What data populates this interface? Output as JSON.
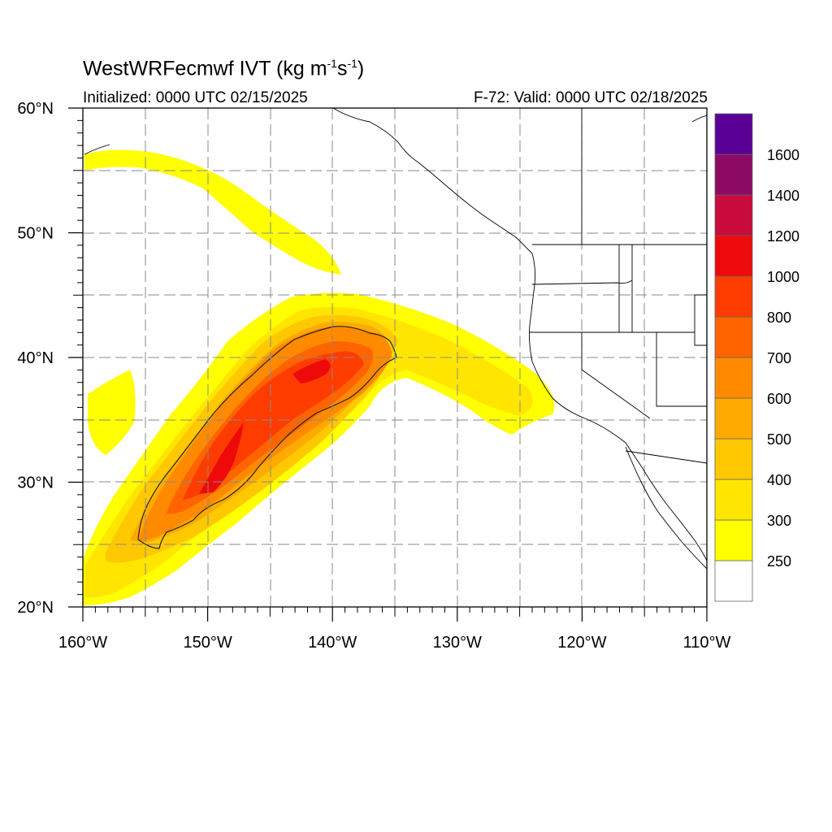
{
  "title": {
    "model": "WestWRFecmwf",
    "variable": "IVT",
    "units_prefix": "(kg m",
    "units_exp1": "-1",
    "units_mid": "s",
    "units_exp2": "-1",
    "units_suffix": ")"
  },
  "subtitle_left": "Initialized: 0000 UTC 02/15/2025",
  "subtitle_right": "F-72: Valid: 0000 UTC 02/18/2025",
  "map": {
    "lon_range": [
      -160,
      -110
    ],
    "lat_range": [
      20,
      60
    ],
    "lon_ticks": [
      {
        "value": -160,
        "label": "160°W"
      },
      {
        "value": -150,
        "label": "150°W"
      },
      {
        "value": -140,
        "label": "140°W"
      },
      {
        "value": -130,
        "label": "130°W"
      },
      {
        "value": -120,
        "label": "120°W"
      },
      {
        "value": -110,
        "label": "110°W"
      }
    ],
    "lat_ticks": [
      {
        "value": 60,
        "label": "60°N"
      },
      {
        "value": 50,
        "label": "50°N"
      },
      {
        "value": 40,
        "label": "40°N"
      },
      {
        "value": 30,
        "label": "30°N"
      },
      {
        "value": 20,
        "label": "20°N"
      }
    ],
    "grid": "dashed gray, every 5 degrees",
    "contour_line_level": 600
  },
  "colorbar": {
    "levels": [
      {
        "label": "",
        "color": "#ffffff"
      },
      {
        "label": "250",
        "color": "#ffff00"
      },
      {
        "label": "300",
        "color": "#ffe500"
      },
      {
        "label": "400",
        "color": "#ffc800"
      },
      {
        "label": "500",
        "color": "#ffaa00"
      },
      {
        "label": "600",
        "color": "#ff8a00"
      },
      {
        "label": "700",
        "color": "#ff6400"
      },
      {
        "label": "800",
        "color": "#ff3c00"
      },
      {
        "label": "1000",
        "color": "#ee0a0a"
      },
      {
        "label": "1200",
        "color": "#c80a3c"
      },
      {
        "label": "1400",
        "color": "#8c0a64"
      },
      {
        "label": "1600",
        "color": "#5a0096"
      }
    ]
  }
}
